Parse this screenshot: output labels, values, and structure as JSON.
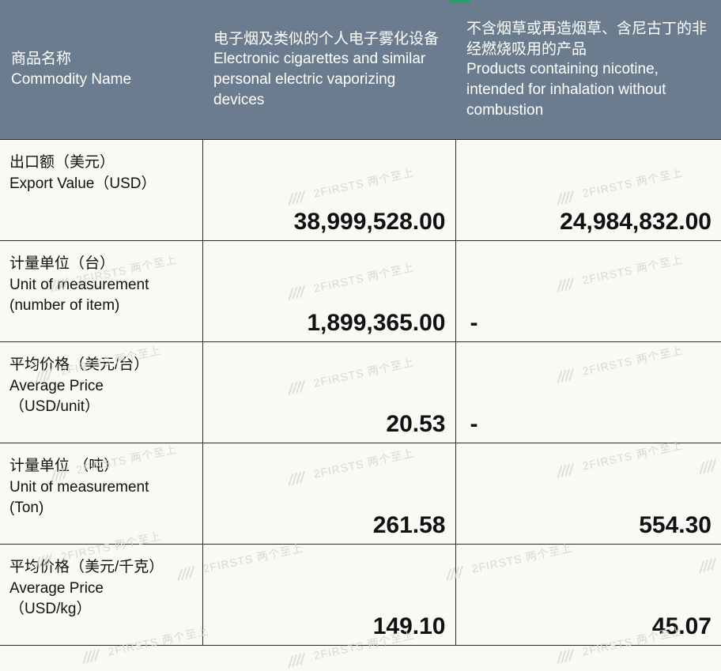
{
  "header": {
    "col1": "商品名称\nCommodity Name",
    "col2": "电子烟及类似的个人电子雾化设备\nElectronic cigarettes and similar personal electric vaporizing devices",
    "col3": "不含烟草或再造烟草、含尼古丁的非经燃烧吸用的产品\nProducts containing nicotine, intended for inhalation without combustion"
  },
  "rows": [
    {
      "label": "出口额（美元）\n Export Value（USD）",
      "c2": "38,999,528.00",
      "c3": "24,984,832.00",
      "c3_align": "num"
    },
    {
      "label": "计量单位（台）\nUnit of measurement\n(number of item)",
      "c2": "1,899,365.00",
      "c3": "-",
      "c3_align": "dash"
    },
    {
      "label": "平均价格（美元/台）\nAverage Price\n（USD/unit）",
      "c2": "20.53",
      "c3": "-",
      "c3_align": "dash"
    },
    {
      "label": "计量单位 （吨）\nUnit of measurement\n(Ton)",
      "c2": "261.58",
      "c3": "554.30",
      "c3_align": "num"
    },
    {
      "label": "平均价格（美元/千克）\nAverage Price\n（USD/kg）",
      "c2": "149.10",
      "c3": "45.07",
      "c3_align": "num"
    }
  ],
  "watermark": {
    "text": "2FIRSTS 两个至上"
  },
  "colors": {
    "header_bg": "#6b7c8f",
    "header_text": "#ffffff",
    "border": "#2a2a2a",
    "body_bg": "#faf9f5",
    "text": "#111111",
    "watermark": "#d8d4ce",
    "accent": "#2e9b6f"
  }
}
